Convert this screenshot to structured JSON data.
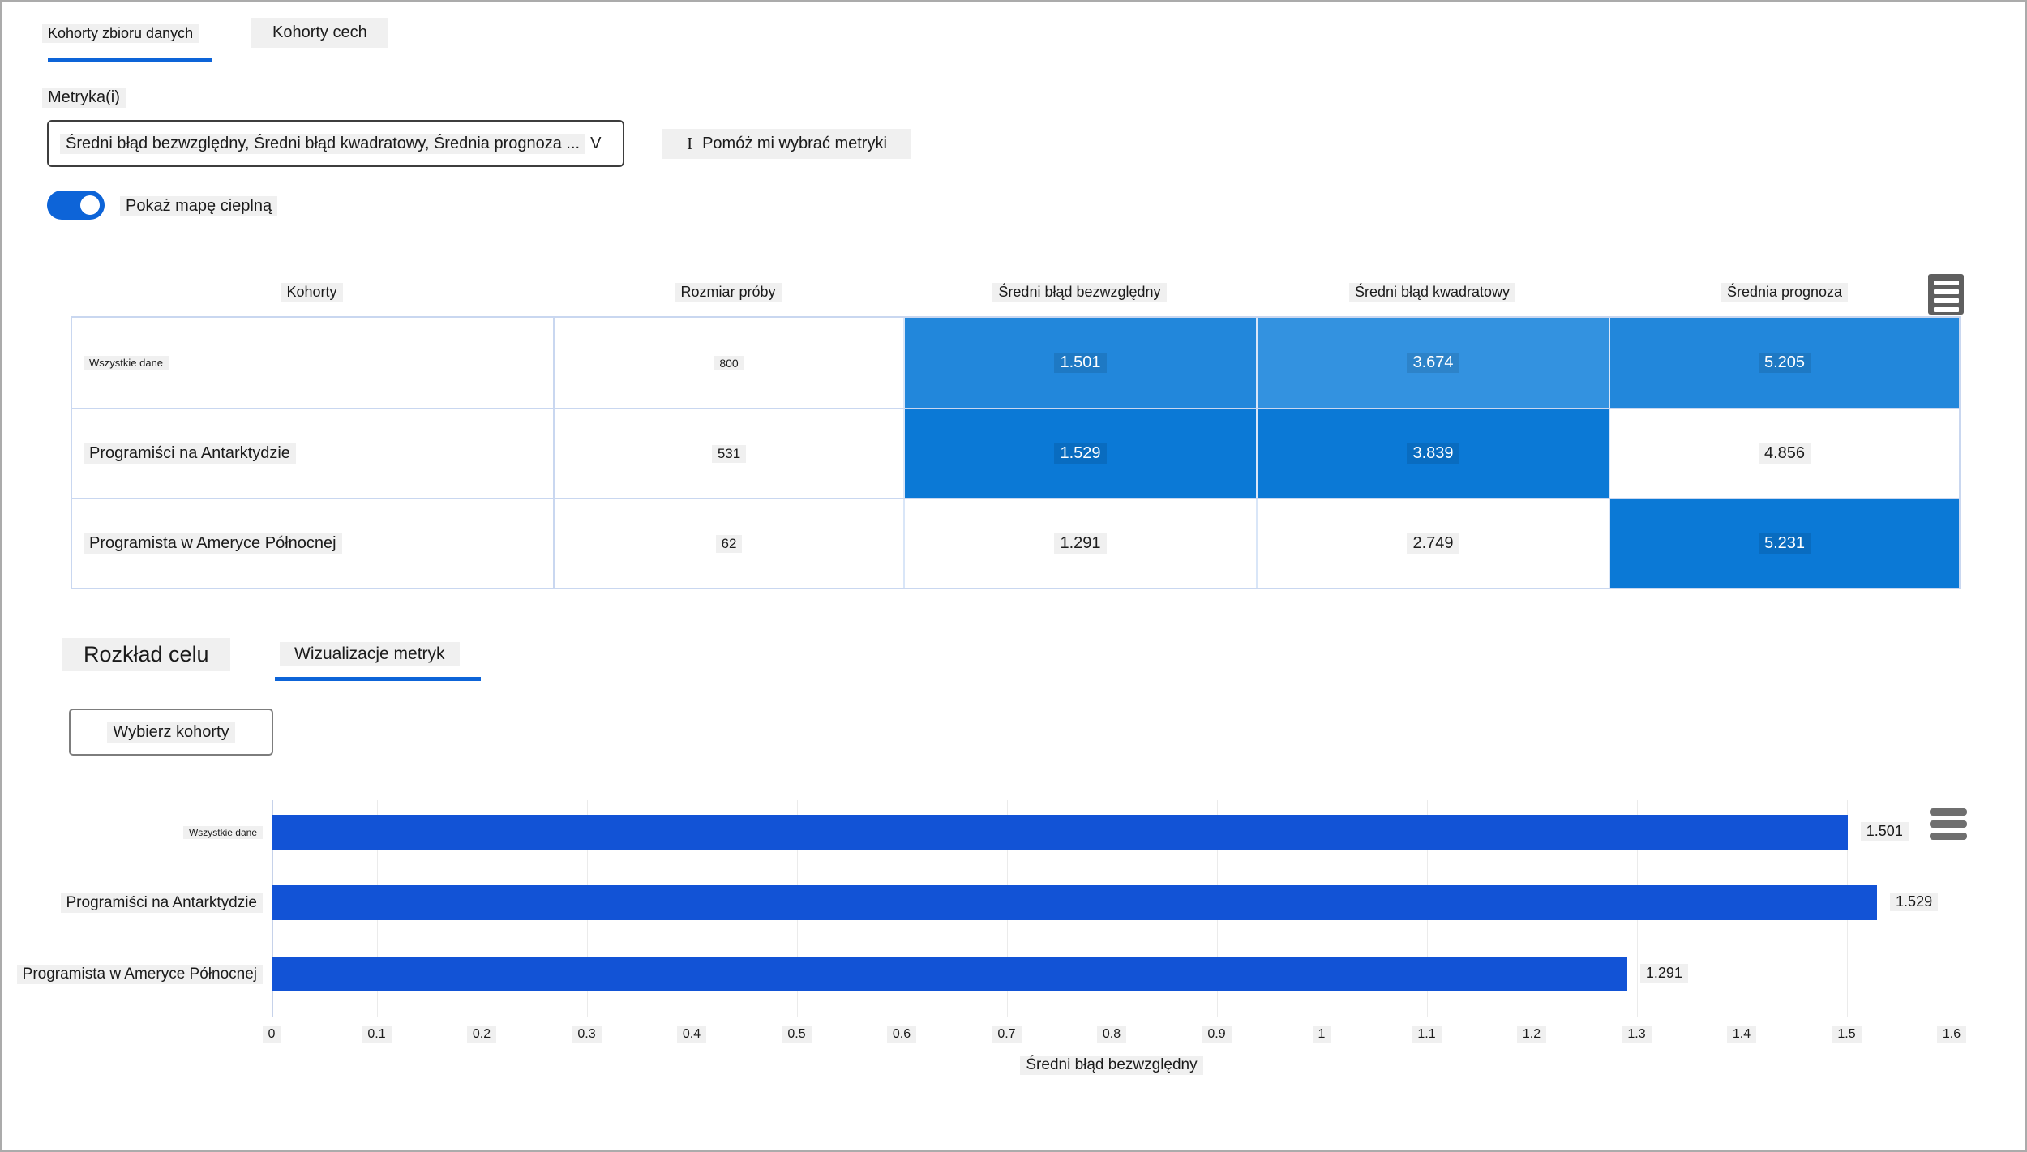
{
  "top_tabs": {
    "dataset_cohorts": "Kohorty zbioru danych",
    "feature_cohorts": "Kohorty cech"
  },
  "metrics": {
    "label": "Metryka(i)",
    "selected_value": "Średni błąd bezwzględny, Średni błąd kwadratowy, Średnia prognoza ...",
    "chevron_glyph": "V"
  },
  "help_button": {
    "info_glyph": "I",
    "label": "Pomóż mi wybrać metryki"
  },
  "heatmap_toggle": {
    "state": "on",
    "label": "Pokaż mapę cieplną"
  },
  "table": {
    "columns": [
      "Kohorty",
      "Rozmiar próby",
      "Średni błąd bezwzględny",
      "Średni błąd kwadratowy",
      "Średnia prognoza"
    ],
    "rows": [
      {
        "cohort": "Wszystkie dane",
        "sample_size": "800",
        "values": [
          "1.501",
          "3.674",
          "5.205"
        ],
        "cell_colors": [
          "#2287db",
          "#3392e0",
          "#2287db"
        ]
      },
      {
        "cohort": "Programiści na Antarktydzie",
        "sample_size": "531",
        "values": [
          "1.529",
          "3.839",
          "4.856"
        ],
        "cell_colors": [
          "#0b79d6",
          "#0b79d6",
          "#ffffff"
        ]
      },
      {
        "cohort": "Programista w Ameryce Północnej",
        "sample_size": "62",
        "values": [
          "1.291",
          "2.749",
          "5.231"
        ],
        "cell_colors": [
          "#ffffff",
          "#ffffff",
          "#0b79d6"
        ]
      }
    ]
  },
  "section_tabs": {
    "target_distribution": "Rozkład celu",
    "metric_visualizations": "Wizualizacje metryk"
  },
  "select_cohorts_button": "Wybierz kohorty",
  "chart_data": {
    "type": "bar",
    "orientation": "horizontal",
    "categories": [
      "Wszystkie dane",
      "Programiści na Antarktydzie",
      "Programista w Ameryce Północnej"
    ],
    "values": [
      1.501,
      1.529,
      1.291
    ],
    "value_labels": [
      "1.501",
      "1.529",
      "1.291"
    ],
    "xlabel": "Średni błąd bezwzględny",
    "xlim": [
      0,
      1.6
    ],
    "xticks": [
      "0",
      "0.1",
      "0.2",
      "0.3",
      "0.4",
      "0.5",
      "0.6",
      "0.7",
      "0.8",
      "0.9",
      "1",
      "1.1",
      "1.2",
      "1.3",
      "1.4",
      "1.5",
      "1.6"
    ],
    "grid": true,
    "legend": null,
    "bar_color": "#1253d6"
  },
  "colors": {
    "accent_blue": "#0d64d8",
    "bar_blue": "#1253d6",
    "heat_deep": "#0b79d6",
    "heat_mid": "#2287db",
    "heat_light": "#3392e0"
  }
}
